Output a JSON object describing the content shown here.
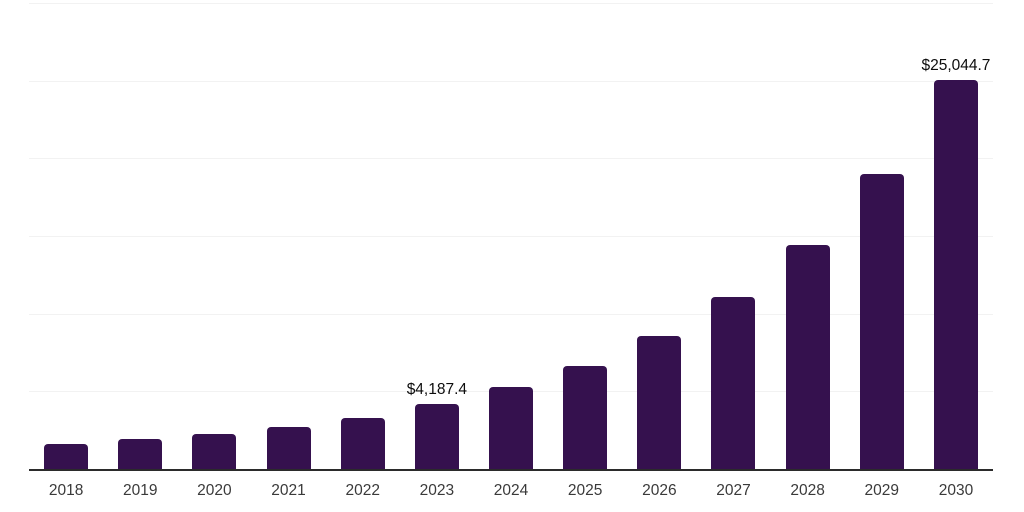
{
  "chart_data": {
    "type": "bar",
    "title": "",
    "xlabel": "",
    "ylabel": "",
    "categories": [
      "2018",
      "2019",
      "2020",
      "2021",
      "2022",
      "2023",
      "2024",
      "2025",
      "2026",
      "2027",
      "2028",
      "2029",
      "2030"
    ],
    "values": [
      1600,
      1950,
      2250,
      2700,
      3300,
      4187.4,
      5250,
      6600,
      8550,
      11050,
      14400,
      19000,
      25044.7
    ],
    "data_labels": [
      {
        "category": "2023",
        "text": "$4,187.4"
      },
      {
        "category": "2030",
        "text": "$25,044.7"
      }
    ],
    "ylim": [
      0,
      30000
    ],
    "ytick_step": 5000,
    "grid": "horizontal",
    "legend_position": "none",
    "colors": {
      "bar": "#35114E",
      "axis_line": "#2b2b2b",
      "gridline": "#f2f2f2",
      "tick_label": "#3a3a3a",
      "data_label": "#0d0d0d",
      "background": "#ffffff"
    }
  }
}
